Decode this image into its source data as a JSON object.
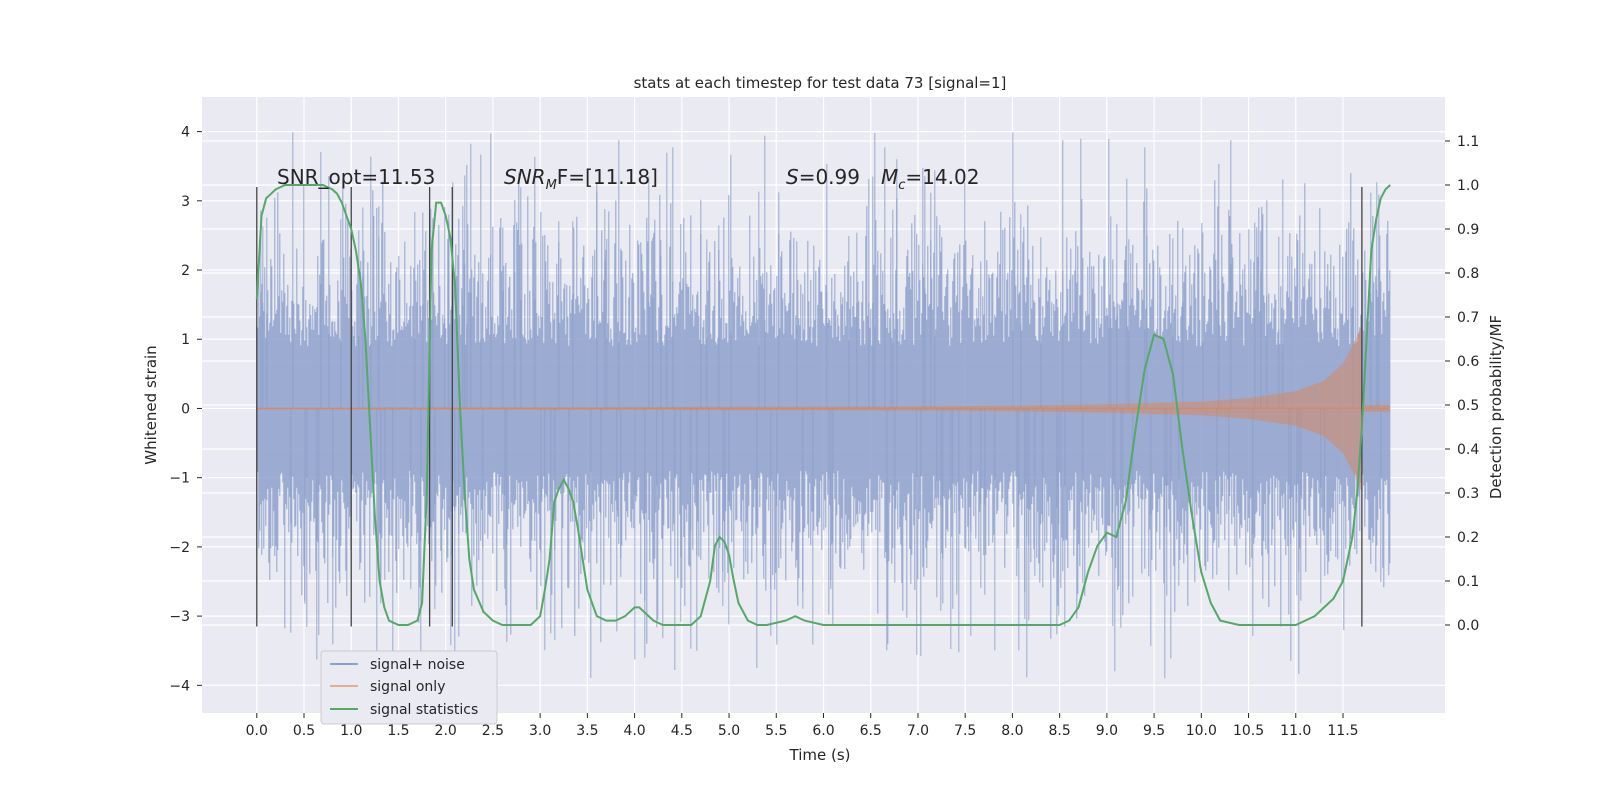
{
  "chart_data": {
    "type": "line",
    "title": "stats at each timestep for test data 73 [signal=1]",
    "xlabel": "Time (s)",
    "ylabel": "Whitened strain",
    "y2label": "Detection probability/MF",
    "xlim": [
      -0.58,
      12.58
    ],
    "ylim": [
      -4.4,
      4.5
    ],
    "y2lim": [
      -0.2,
      1.2
    ],
    "xticks": [
      "0.0",
      "0.5",
      "1.0",
      "1.5",
      "2.0",
      "2.5",
      "3.0",
      "3.5",
      "4.0",
      "4.5",
      "5.0",
      "5.5",
      "6.0",
      "6.5",
      "7.0",
      "7.5",
      "8.0",
      "8.5",
      "9.0",
      "9.5",
      "10.0",
      "10.5",
      "11.0",
      "11.5"
    ],
    "yticks": [
      "−4",
      "−3",
      "−2",
      "−1",
      "0",
      "1",
      "2",
      "3",
      "4"
    ],
    "y2ticks": [
      "0.0",
      "0.1",
      "0.2",
      "0.3",
      "0.4",
      "0.5",
      "0.6",
      "0.7",
      "0.8",
      "0.9",
      "1.0",
      "1.1"
    ],
    "grid": true,
    "legend": {
      "placement": "lower-left",
      "entries": [
        "signal+ noise",
        "signal only",
        "signal statistics"
      ]
    },
    "annotations": {
      "snr_opt": "SNR_opt=11.53",
      "snr_mf_sym": "SNR",
      "snr_mf_sub": "M",
      "snr_mf_rest": "F=[11.18]",
      "s_sym": "S",
      "s_rest": "=0.99",
      "mc_sym": "M",
      "mc_sub": "c",
      "mc_rest": "=14.02"
    },
    "colors": {
      "noise": "#8da0cb",
      "signal": "#dd8452",
      "stats": "#55a868",
      "background": "#eaeaf2",
      "vline": "#444444"
    },
    "vertical_lines": [
      0.0,
      1.0,
      1.83,
      2.07,
      11.7
    ],
    "vertical_line_range": [
      -3.15,
      3.2
    ],
    "signal_envelope": [
      [
        0.0,
        0.01
      ],
      [
        4.0,
        0.02
      ],
      [
        7.0,
        0.03
      ],
      [
        8.0,
        0.04
      ],
      [
        9.0,
        0.06
      ],
      [
        10.0,
        0.1
      ],
      [
        10.5,
        0.15
      ],
      [
        11.0,
        0.25
      ],
      [
        11.3,
        0.4
      ],
      [
        11.5,
        0.65
      ],
      [
        11.6,
        0.9
      ],
      [
        11.7,
        1.2
      ]
    ],
    "series": [
      {
        "name": "signal statistics",
        "axis": "right",
        "x": [
          0.0,
          0.05,
          0.1,
          0.15,
          0.2,
          0.3,
          0.5,
          0.7,
          0.8,
          0.85,
          0.9,
          0.95,
          1.0,
          1.05,
          1.1,
          1.15,
          1.2,
          1.25,
          1.3,
          1.35,
          1.4,
          1.5,
          1.6,
          1.7,
          1.75,
          1.8,
          1.85,
          1.9,
          1.95,
          2.0,
          2.05,
          2.1,
          2.15,
          2.2,
          2.25,
          2.3,
          2.4,
          2.5,
          2.6,
          2.7,
          2.8,
          2.9,
          3.0,
          3.05,
          3.1,
          3.15,
          3.2,
          3.25,
          3.3,
          3.35,
          3.4,
          3.45,
          3.5,
          3.6,
          3.7,
          3.8,
          3.9,
          4.0,
          4.05,
          4.1,
          4.2,
          4.3,
          4.5,
          4.6,
          4.7,
          4.8,
          4.85,
          4.9,
          4.95,
          5.0,
          5.05,
          5.1,
          5.2,
          5.3,
          5.4,
          5.6,
          5.7,
          5.8,
          6.0,
          7.0,
          8.0,
          8.5,
          8.6,
          8.7,
          8.8,
          8.9,
          9.0,
          9.1,
          9.2,
          9.3,
          9.4,
          9.5,
          9.6,
          9.7,
          9.8,
          9.9,
          10.0,
          10.1,
          10.2,
          10.4,
          10.6,
          10.8,
          11.0,
          11.1,
          11.2,
          11.3,
          11.4,
          11.5,
          11.55,
          11.6,
          11.65,
          11.7,
          11.75,
          11.8,
          11.85,
          11.9,
          11.95,
          12.0
        ],
        "values": [
          0.74,
          0.93,
          0.97,
          0.98,
          0.99,
          1.0,
          1.0,
          1.0,
          0.99,
          0.98,
          0.96,
          0.93,
          0.9,
          0.85,
          0.78,
          0.65,
          0.45,
          0.25,
          0.1,
          0.04,
          0.01,
          0.0,
          0.0,
          0.01,
          0.05,
          0.3,
          0.85,
          0.96,
          0.96,
          0.93,
          0.88,
          0.77,
          0.5,
          0.3,
          0.15,
          0.08,
          0.03,
          0.01,
          0.0,
          0.0,
          0.0,
          0.0,
          0.02,
          0.08,
          0.15,
          0.28,
          0.31,
          0.33,
          0.31,
          0.28,
          0.22,
          0.15,
          0.08,
          0.02,
          0.01,
          0.01,
          0.02,
          0.04,
          0.04,
          0.03,
          0.01,
          0.0,
          0.0,
          0.0,
          0.02,
          0.1,
          0.18,
          0.2,
          0.19,
          0.16,
          0.1,
          0.05,
          0.01,
          0.0,
          0.0,
          0.01,
          0.02,
          0.01,
          0.0,
          0.0,
          0.0,
          0.0,
          0.01,
          0.04,
          0.12,
          0.18,
          0.21,
          0.2,
          0.28,
          0.44,
          0.58,
          0.66,
          0.65,
          0.57,
          0.4,
          0.25,
          0.12,
          0.05,
          0.01,
          0.0,
          0.0,
          0.0,
          0.0,
          0.01,
          0.02,
          0.04,
          0.06,
          0.1,
          0.15,
          0.2,
          0.3,
          0.45,
          0.65,
          0.85,
          0.92,
          0.97,
          0.99,
          1.0
        ]
      }
    ]
  }
}
